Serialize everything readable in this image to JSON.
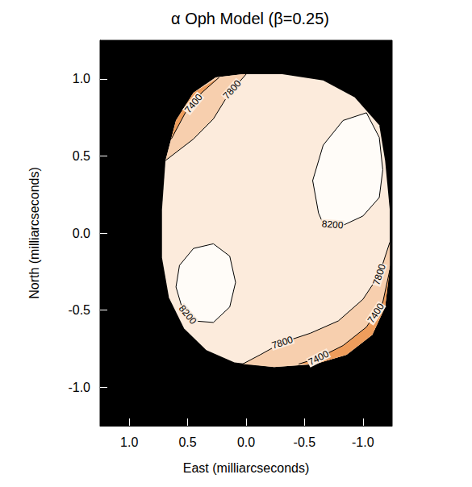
{
  "chart_data": {
    "type": "contour",
    "title": "α Oph Model (β=0.25)",
    "xlabel": "East (milliarcseconds)",
    "ylabel": "North (milliarcseconds)",
    "xlim": [
      1.25,
      -1.25
    ],
    "ylim": [
      -1.25,
      1.25
    ],
    "xticks": [
      {
        "value": 1,
        "label": "1.0"
      },
      {
        "value": 0.5,
        "label": "0.5"
      },
      {
        "value": 0,
        "label": "0.0"
      },
      {
        "value": -0.5,
        "label": "-0.5"
      },
      {
        "value": -1,
        "label": "-1.0"
      }
    ],
    "yticks": [
      {
        "value": -1,
        "label": "-1.0"
      },
      {
        "value": -0.5,
        "label": "-0.5"
      },
      {
        "value": 0,
        "label": "0.0"
      },
      {
        "value": 0.5,
        "label": "0.5"
      },
      {
        "value": 1,
        "label": "1.0"
      }
    ],
    "star": {
      "color": "#fcebdc",
      "outline": [
        [
          0.03,
          1.03
        ],
        [
          -0.31,
          1.03
        ],
        [
          -0.66,
          0.99
        ],
        [
          -0.93,
          0.88
        ],
        [
          -1.14,
          0.7
        ],
        [
          -1.19,
          0.47
        ],
        [
          -1.23,
          0.15
        ],
        [
          -1.23,
          -0.21
        ],
        [
          -1.19,
          -0.48
        ],
        [
          -1.08,
          -0.66
        ],
        [
          -0.86,
          -0.79
        ],
        [
          -0.59,
          -0.85
        ],
        [
          -0.24,
          -0.87
        ],
        [
          0.1,
          -0.84
        ],
        [
          0.34,
          -0.76
        ],
        [
          0.53,
          -0.62
        ],
        [
          0.66,
          -0.42
        ],
        [
          0.72,
          -0.16
        ],
        [
          0.72,
          0.15
        ],
        [
          0.69,
          0.47
        ],
        [
          0.6,
          0.73
        ],
        [
          0.45,
          0.91
        ],
        [
          0.26,
          1.01
        ]
      ]
    },
    "regions": [
      {
        "color": "#f7cfae",
        "polygon": [
          [
            0.69,
            0.47
          ],
          [
            0.45,
            0.61
          ],
          [
            0.28,
            0.74
          ],
          [
            0.15,
            0.9
          ],
          [
            0.0,
            1.03
          ],
          [
            0.03,
            1.03
          ],
          [
            0.26,
            1.01
          ],
          [
            0.45,
            0.91
          ],
          [
            0.6,
            0.73
          ]
        ]
      },
      {
        "color": "#f7cfae",
        "polygon": [
          [
            -1.23,
            -0.06
          ],
          [
            -1.14,
            -0.27
          ],
          [
            -1.0,
            -0.43
          ],
          [
            -0.79,
            -0.57
          ],
          [
            -0.55,
            -0.65
          ],
          [
            -0.31,
            -0.71
          ],
          [
            -0.12,
            -0.79
          ],
          [
            0.03,
            -0.85
          ],
          [
            -0.24,
            -0.87
          ],
          [
            -0.59,
            -0.85
          ],
          [
            -0.86,
            -0.79
          ],
          [
            -1.08,
            -0.66
          ],
          [
            -1.19,
            -0.48
          ],
          [
            -1.23,
            -0.21
          ]
        ]
      },
      {
        "color": "#ee9d5c",
        "polygon": [
          [
            0.64,
            0.61
          ],
          [
            0.52,
            0.78
          ],
          [
            0.38,
            0.91
          ],
          [
            0.23,
            1.01
          ],
          [
            0.45,
            0.91
          ],
          [
            0.6,
            0.73
          ]
        ]
      },
      {
        "color": "#ee9d5c",
        "polygon": [
          [
            -1.23,
            -0.24
          ],
          [
            -1.17,
            -0.45
          ],
          [
            -1.03,
            -0.61
          ],
          [
            -0.83,
            -0.73
          ],
          [
            -0.62,
            -0.81
          ],
          [
            -0.45,
            -0.85
          ],
          [
            -0.59,
            -0.85
          ],
          [
            -0.86,
            -0.79
          ],
          [
            -1.08,
            -0.66
          ],
          [
            -1.19,
            -0.48
          ]
        ]
      },
      {
        "color": "#fffcf8",
        "polygon": [
          [
            -0.62,
            0.13
          ],
          [
            -0.57,
            0.34
          ],
          [
            -0.66,
            0.57
          ],
          [
            -0.83,
            0.73
          ],
          [
            -1.03,
            0.78
          ],
          [
            -1.14,
            0.62
          ],
          [
            -1.17,
            0.41
          ],
          [
            -1.14,
            0.23
          ],
          [
            -1.0,
            0.11
          ],
          [
            -0.83,
            0.05
          ],
          [
            -0.66,
            0.06
          ]
        ]
      },
      {
        "color": "#fffcf8",
        "polygon": [
          [
            0.57,
            -0.21
          ],
          [
            0.45,
            -0.1
          ],
          [
            0.28,
            -0.07
          ],
          [
            0.14,
            -0.15
          ],
          [
            0.09,
            -0.32
          ],
          [
            0.14,
            -0.48
          ],
          [
            0.28,
            -0.58
          ],
          [
            0.45,
            -0.57
          ],
          [
            0.55,
            -0.48
          ],
          [
            0.6,
            -0.35
          ]
        ]
      }
    ],
    "contours": [
      {
        "level": 7400,
        "lines": [
          [
            [
              0.64,
              0.61
            ],
            [
              0.52,
              0.78
            ],
            [
              0.38,
              0.91
            ],
            [
              0.23,
              1.01
            ]
          ],
          [
            [
              -1.23,
              -0.24
            ],
            [
              -1.17,
              -0.45
            ],
            [
              -1.03,
              -0.61
            ],
            [
              -0.83,
              -0.73
            ],
            [
              -0.62,
              -0.81
            ],
            [
              -0.45,
              -0.85
            ]
          ]
        ],
        "label_at": [
          [
            0.45,
            0.84
          ],
          [
            -1.11,
            -0.52
          ],
          [
            -0.62,
            -0.81
          ]
        ]
      },
      {
        "level": 7800,
        "lines": [
          [
            [
              0.69,
              0.47
            ],
            [
              0.45,
              0.61
            ],
            [
              0.28,
              0.74
            ],
            [
              0.15,
              0.9
            ],
            [
              0.0,
              1.03
            ]
          ],
          [
            [
              -1.23,
              -0.06
            ],
            [
              -1.14,
              -0.27
            ],
            [
              -1.0,
              -0.43
            ],
            [
              -0.79,
              -0.57
            ],
            [
              -0.55,
              -0.65
            ],
            [
              -0.31,
              -0.71
            ],
            [
              -0.12,
              -0.79
            ],
            [
              0.03,
              -0.85
            ]
          ]
        ],
        "label_at": [
          [
            0.12,
            0.93
          ],
          [
            -1.14,
            -0.27
          ],
          [
            -0.31,
            -0.71
          ]
        ]
      },
      {
        "level": 8200,
        "lines": [
          [
            [
              -0.62,
              0.13
            ],
            [
              -0.57,
              0.34
            ],
            [
              -0.66,
              0.57
            ],
            [
              -0.83,
              0.73
            ],
            [
              -1.03,
              0.78
            ],
            [
              -1.14,
              0.62
            ],
            [
              -1.17,
              0.41
            ],
            [
              -1.14,
              0.23
            ],
            [
              -1.0,
              0.11
            ],
            [
              -0.83,
              0.05
            ],
            [
              -0.66,
              0.06
            ],
            [
              -0.62,
              0.13
            ]
          ],
          [
            [
              0.57,
              -0.21
            ],
            [
              0.45,
              -0.1
            ],
            [
              0.28,
              -0.07
            ],
            [
              0.14,
              -0.15
            ],
            [
              0.09,
              -0.32
            ],
            [
              0.14,
              -0.48
            ],
            [
              0.28,
              -0.58
            ],
            [
              0.45,
              -0.57
            ],
            [
              0.55,
              -0.48
            ],
            [
              0.6,
              -0.35
            ],
            [
              0.57,
              -0.21
            ]
          ]
        ],
        "label_at": [
          [
            -0.74,
            0.055
          ],
          [
            0.5,
            -0.53
          ]
        ]
      }
    ]
  }
}
